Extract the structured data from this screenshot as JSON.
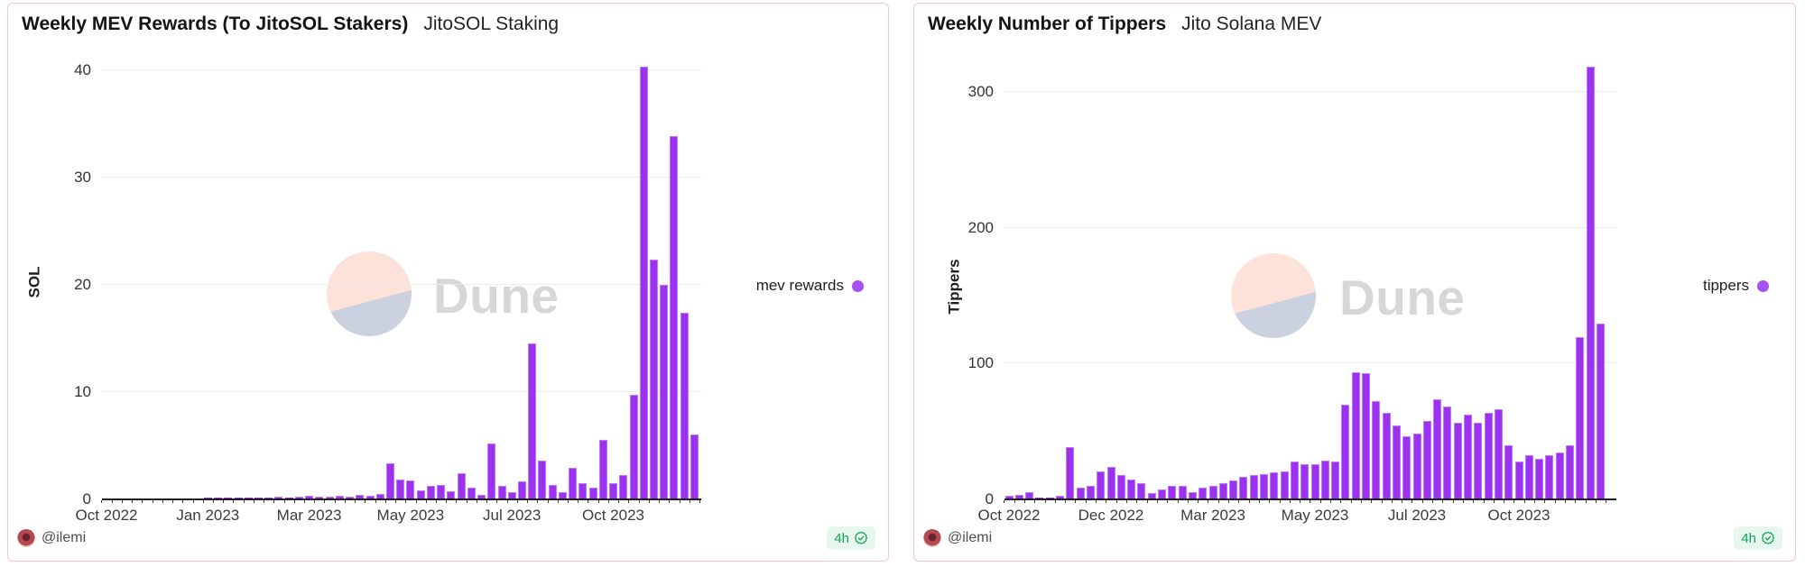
{
  "colors": {
    "bar_fill": "#9b32f0",
    "bar_edge": "#c176f6",
    "legend_dot": "#a551f3",
    "panel_border": "#f5c7c2",
    "gridline": "#eeeeee",
    "axis_line": "#1c1c1c",
    "badge_green": "#17a15c",
    "badge_bg": "#e7f7ee",
    "watermark_pink": "#fce2d9",
    "watermark_lavender": "#ccd1df",
    "watermark_text": "#d7d7d7"
  },
  "footer": {
    "author": "@ilemi",
    "refresh": "4h"
  },
  "watermark_text": "Dune",
  "chart_data": [
    {
      "type": "bar",
      "title": "Weekly MEV Rewards (To JitoSOL Stakers)",
      "subtitle": "JitoSOL Staking",
      "ylabel": "SOL",
      "xlabel": "",
      "legend": [
        {
          "name": "mev rewards",
          "color": "#a551f3"
        }
      ],
      "legend_position": "right",
      "grid": true,
      "ylim": [
        0,
        40
      ],
      "yticks": [
        0,
        10,
        20,
        30,
        40
      ],
      "x_unit": "week",
      "x_tick_labels": [
        "Oct 2022",
        "Jan 2023",
        "Mar 2023",
        "May 2023",
        "Jul 2023",
        "Oct 2023"
      ],
      "x_tick_indices": [
        0,
        10,
        20,
        30,
        40,
        50
      ],
      "values": [
        0.02,
        0.02,
        0.03,
        0.02,
        0.03,
        0.03,
        0.02,
        0.03,
        0.04,
        0.04,
        0.05,
        0.05,
        0.06,
        0.08,
        0.1,
        0.12,
        0.1,
        0.15,
        0.12,
        0.15,
        0.25,
        0.15,
        0.2,
        0.25,
        0.2,
        0.3,
        0.25,
        0.4,
        3.3,
        1.8,
        1.7,
        0.8,
        1.2,
        1.3,
        0.7,
        2.4,
        1.0,
        0.3,
        5.1,
        1.2,
        0.6,
        1.6,
        14.5,
        3.5,
        1.3,
        0.6,
        2.9,
        1.4,
        1.0,
        5.5,
        1.4,
        2.2,
        9.7,
        40.3,
        22.3,
        19.9,
        33.8,
        17.3,
        6.0
      ]
    },
    {
      "type": "bar",
      "title": "Weekly Number of Tippers",
      "subtitle": "Jito Solana MEV",
      "ylabel": "Tippers",
      "xlabel": "",
      "legend": [
        {
          "name": "tippers",
          "color": "#a551f3"
        }
      ],
      "legend_position": "right",
      "grid": true,
      "ylim": [
        0,
        300
      ],
      "yticks": [
        0,
        100,
        200,
        300
      ],
      "x_unit": "week",
      "x_tick_labels": [
        "Oct 2022",
        "Dec 2022",
        "Mar 2023",
        "May 2023",
        "Jul 2023",
        "Oct 2023"
      ],
      "x_tick_indices": [
        0,
        10,
        20,
        30,
        40,
        50
      ],
      "values": [
        2,
        3,
        5,
        1,
        1,
        2,
        38,
        8,
        9,
        20,
        23,
        17,
        14,
        11,
        4,
        7,
        9,
        9,
        5,
        8,
        9,
        11,
        13,
        16,
        17,
        18,
        19,
        20,
        27,
        25,
        25,
        28,
        27,
        69,
        93,
        92,
        72,
        63,
        54,
        46,
        48,
        57,
        73,
        68,
        56,
        62,
        56,
        63,
        66,
        39,
        27,
        32,
        29,
        32,
        34,
        39,
        119,
        318,
        129
      ]
    }
  ]
}
